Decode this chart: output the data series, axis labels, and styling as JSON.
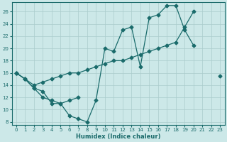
{
  "xlabel": "Humidex (Indice chaleur)",
  "background_color": "#cce8e8",
  "grid_color": "#aacccc",
  "line_color": "#1a6b6b",
  "xlim": [
    -0.5,
    23.5
  ],
  "ylim": [
    7.5,
    27.5
  ],
  "yticks": [
    8,
    10,
    12,
    14,
    16,
    18,
    20,
    22,
    24,
    26
  ],
  "xticks": [
    0,
    1,
    2,
    3,
    4,
    5,
    6,
    7,
    8,
    9,
    10,
    11,
    12,
    13,
    14,
    15,
    16,
    17,
    18,
    19,
    20,
    21,
    22,
    23
  ],
  "line1_xy": [
    [
      0,
      16
    ],
    [
      1,
      15
    ],
    [
      2,
      13.5
    ],
    [
      3,
      12
    ],
    [
      4,
      11.5
    ],
    [
      5,
      11
    ],
    [
      6,
      9
    ],
    [
      7,
      8.5
    ],
    [
      8,
      8
    ],
    [
      9,
      11.5
    ],
    [
      10,
      20
    ],
    [
      11,
      19.5
    ],
    [
      12,
      23
    ],
    [
      13,
      23.5
    ],
    [
      14,
      17
    ],
    [
      15,
      25
    ],
    [
      16,
      25.5
    ],
    [
      17,
      27
    ],
    [
      18,
      27
    ],
    [
      19,
      23
    ],
    [
      20,
      20.5
    ]
  ],
  "line2_xy": [
    [
      0,
      16
    ],
    [
      1,
      15
    ],
    [
      2,
      14
    ],
    [
      3,
      14.5
    ],
    [
      4,
      15
    ],
    [
      5,
      15.5
    ],
    [
      6,
      16
    ],
    [
      7,
      16
    ],
    [
      8,
      16.5
    ],
    [
      9,
      17
    ],
    [
      10,
      17.5
    ],
    [
      11,
      18
    ],
    [
      12,
      18
    ],
    [
      13,
      18.5
    ],
    [
      14,
      19
    ],
    [
      15,
      19.5
    ],
    [
      16,
      20
    ],
    [
      17,
      20.5
    ],
    [
      18,
      21
    ],
    [
      19,
      23.5
    ],
    [
      20,
      26
    ],
    [
      23,
      15.5
    ]
  ],
  "line3_xy": [
    [
      0,
      16
    ],
    [
      1,
      15
    ],
    [
      2,
      13.5
    ],
    [
      3,
      13
    ],
    [
      4,
      11
    ],
    [
      5,
      11
    ],
    [
      6,
      11.5
    ],
    [
      7,
      12
    ]
  ]
}
